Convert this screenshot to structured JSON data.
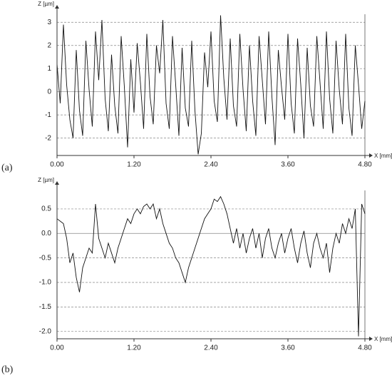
{
  "chart_data": [
    {
      "type": "line",
      "panel_label": "(a)",
      "ylabel": "Z [µm]",
      "xlabel": "X [mm]",
      "color": "#111111",
      "grid": true,
      "xlim": [
        0,
        4.8
      ],
      "ylim": [
        -2.75,
        3.5
      ],
      "xticks": [
        {
          "value": 0,
          "label": "0.00"
        },
        {
          "value": 1.2,
          "label": "1.20"
        },
        {
          "value": 2.4,
          "label": "2.40"
        },
        {
          "value": 3.6,
          "label": "3.60"
        },
        {
          "value": 4.8,
          "label": "4.80"
        }
      ],
      "yticks": [
        -2,
        -1,
        0,
        1,
        2,
        3
      ],
      "x": [
        0,
        0.05,
        0.1,
        0.15,
        0.2,
        0.25,
        0.3,
        0.35,
        0.4,
        0.45,
        0.5,
        0.55,
        0.6,
        0.65,
        0.7,
        0.75,
        0.8,
        0.85,
        0.9,
        0.95,
        1,
        1.05,
        1.1,
        1.15,
        1.2,
        1.25,
        1.3,
        1.35,
        1.4,
        1.45,
        1.5,
        1.55,
        1.6,
        1.65,
        1.7,
        1.75,
        1.8,
        1.85,
        1.9,
        1.95,
        2,
        2.05,
        2.1,
        2.15,
        2.2,
        2.25,
        2.3,
        2.35,
        2.4,
        2.45,
        2.5,
        2.55,
        2.6,
        2.65,
        2.7,
        2.75,
        2.8,
        2.85,
        2.9,
        2.95,
        3,
        3.05,
        3.1,
        3.15,
        3.2,
        3.25,
        3.3,
        3.35,
        3.4,
        3.45,
        3.5,
        3.55,
        3.6,
        3.65,
        3.7,
        3.75,
        3.8,
        3.85,
        3.9,
        3.95,
        4,
        4.05,
        4.1,
        4.15,
        4.2,
        4.25,
        4.3,
        4.35,
        4.4,
        4.45,
        4.5,
        4.55,
        4.6,
        4.65,
        4.7,
        4.75,
        4.8
      ],
      "values": [
        1.2,
        -0.5,
        2.9,
        0.3,
        -1.2,
        -2.0,
        1.8,
        -0.8,
        -1.9,
        2.2,
        0.1,
        -1.5,
        2.6,
        0.5,
        3.1,
        -0.3,
        -1.7,
        1.6,
        -0.6,
        -1.8,
        2.4,
        0.2,
        -2.4,
        1.4,
        -0.9,
        2.1,
        0.4,
        -1.6,
        2.5,
        -0.2,
        -1.4,
        2.0,
        0.8,
        3.1,
        -0.5,
        -1.6,
        2.4,
        0.3,
        -1.9,
        1.9,
        -0.7,
        -1.5,
        2.2,
        -0.8,
        -2.7,
        -1.8,
        1.7,
        0.2,
        2.6,
        -0.4,
        -1.3,
        3.3,
        0.6,
        -1.2,
        2.3,
        -0.6,
        -1.5,
        2.5,
        0.1,
        -1.7,
        2.0,
        -0.4,
        -1.9,
        2.4,
        0.5,
        -1.4,
        2.6,
        -0.2,
        -2.3,
        1.8,
        0.2,
        -1.2,
        2.5,
        -0.5,
        -1.8,
        2.3,
        0.3,
        -2.0,
        1.9,
        -0.6,
        -1.5,
        2.4,
        0.4,
        -1.6,
        2.6,
        -0.3,
        -1.8,
        2.2,
        0.1,
        -1.4,
        2.5,
        -0.7,
        -1.9,
        2.0,
        0.3,
        -1.6,
        -0.4
      ]
    },
    {
      "type": "line",
      "panel_label": "(b)",
      "ylabel": "Z [µm]",
      "xlabel": "X [mm]",
      "color": "#111111",
      "grid": true,
      "xlim": [
        0,
        4.8
      ],
      "ylim": [
        -2.15,
        0.95
      ],
      "xticks": [
        {
          "value": 0,
          "label": "0.00"
        },
        {
          "value": 1.2,
          "label": "1.20"
        },
        {
          "value": 2.4,
          "label": "2.40"
        },
        {
          "value": 3.6,
          "label": "3.60"
        },
        {
          "value": 4.8,
          "label": "4.80"
        }
      ],
      "yticks": [
        {
          "value": -2,
          "label": "-2.0"
        },
        -1.5,
        {
          "value": -1,
          "label": "-1.0"
        },
        -0.5,
        {
          "value": 0,
          "label": "0.0"
        },
        0.5
      ],
      "x": [
        0,
        0.05,
        0.1,
        0.15,
        0.2,
        0.25,
        0.3,
        0.35,
        0.4,
        0.45,
        0.5,
        0.55,
        0.6,
        0.65,
        0.7,
        0.75,
        0.8,
        0.85,
        0.9,
        0.95,
        1,
        1.05,
        1.1,
        1.15,
        1.2,
        1.25,
        1.3,
        1.35,
        1.4,
        1.45,
        1.5,
        1.55,
        1.6,
        1.65,
        1.7,
        1.75,
        1.8,
        1.85,
        1.9,
        1.95,
        2,
        2.05,
        2.1,
        2.15,
        2.2,
        2.25,
        2.3,
        2.35,
        2.4,
        2.45,
        2.5,
        2.55,
        2.6,
        2.65,
        2.7,
        2.75,
        2.8,
        2.85,
        2.9,
        2.95,
        3,
        3.05,
        3.1,
        3.15,
        3.2,
        3.25,
        3.3,
        3.35,
        3.4,
        3.45,
        3.5,
        3.55,
        3.6,
        3.65,
        3.7,
        3.75,
        3.8,
        3.85,
        3.9,
        3.95,
        4,
        4.05,
        4.1,
        4.15,
        4.2,
        4.25,
        4.3,
        4.35,
        4.4,
        4.45,
        4.5,
        4.55,
        4.6,
        4.65,
        4.7,
        4.75,
        4.8
      ],
      "values": [
        0.3,
        0.25,
        0.2,
        -0.1,
        -0.6,
        -0.4,
        -0.9,
        -1.2,
        -0.7,
        -0.5,
        -0.3,
        -0.4,
        0.6,
        -0.1,
        -0.3,
        -0.5,
        -0.2,
        -0.4,
        -0.6,
        -0.3,
        -0.1,
        0.1,
        0.3,
        0.2,
        0.4,
        0.5,
        0.4,
        0.55,
        0.6,
        0.5,
        0.6,
        0.3,
        0.5,
        0.2,
        0.0,
        -0.2,
        -0.3,
        -0.5,
        -0.6,
        -0.8,
        -1.0,
        -0.7,
        -0.5,
        -0.3,
        -0.1,
        0.1,
        0.3,
        0.4,
        0.5,
        0.7,
        0.65,
        0.75,
        0.6,
        0.4,
        0.1,
        -0.2,
        0.1,
        -0.3,
        0.0,
        -0.4,
        -0.1,
        0.1,
        -0.3,
        0.0,
        -0.5,
        -0.1,
        0.1,
        -0.3,
        -0.5,
        -0.2,
        0.0,
        -0.4,
        -0.1,
        0.1,
        -0.3,
        -0.6,
        -0.2,
        0.05,
        -0.4,
        -0.7,
        -0.2,
        0.0,
        -0.3,
        -0.5,
        -0.2,
        -0.8,
        -0.3,
        0.0,
        -0.2,
        0.2,
        0.0,
        0.3,
        0.1,
        0.5,
        -2.1,
        0.6,
        0.4
      ]
    }
  ]
}
